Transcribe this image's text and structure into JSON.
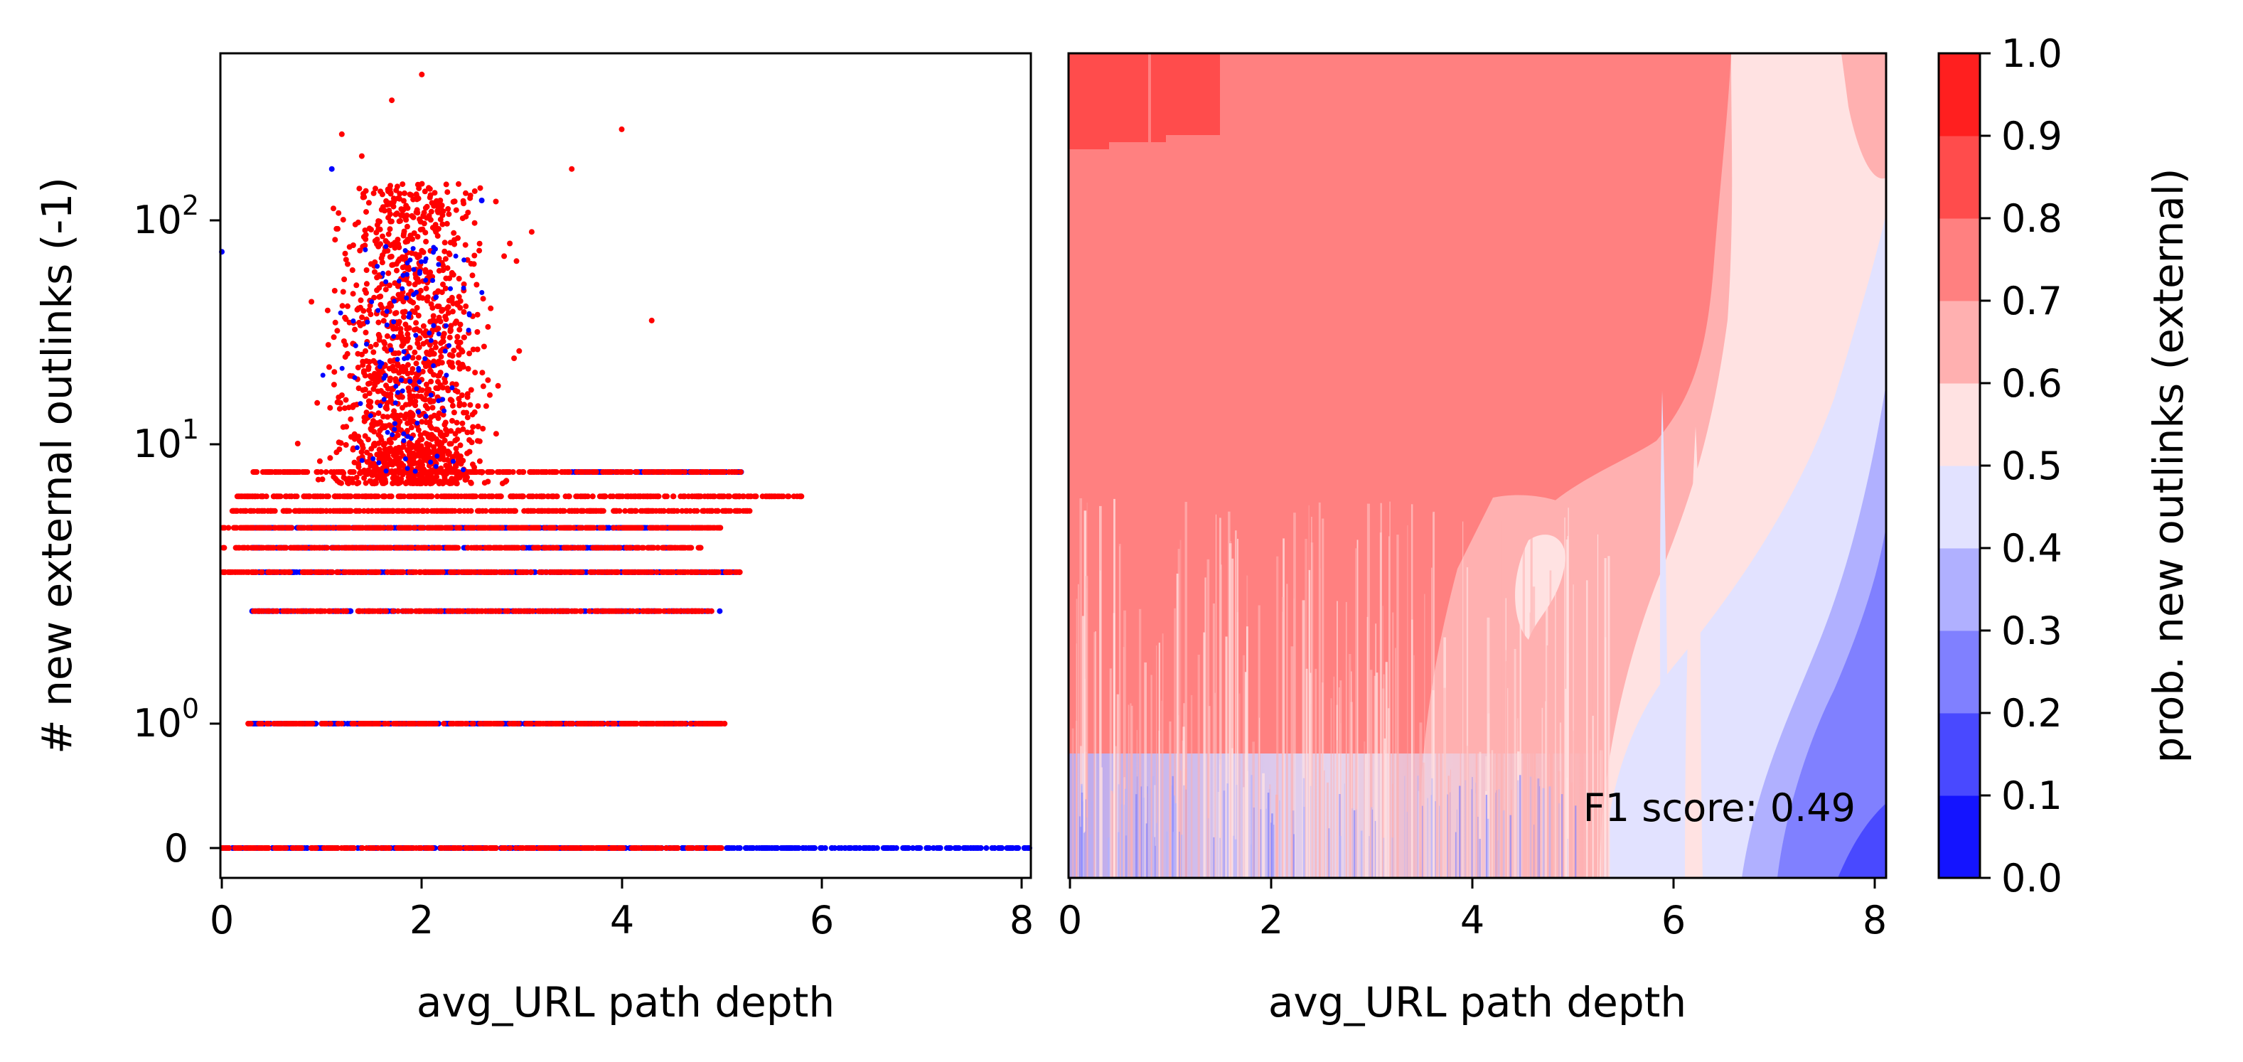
{
  "colors": {
    "class_external": "#ff0000",
    "class_none": "#0000ff",
    "colormap": [
      "#1414ff",
      "#4949ff",
      "#8080ff",
      "#b0b0ff",
      "#e2e2ff",
      "#ffe2e2",
      "#ffb0b0",
      "#ff8080",
      "#ff4c4c",
      "#ff1f1f"
    ]
  },
  "chart_data": [
    {
      "type": "scatter",
      "xlabel": "avg_URL path depth",
      "ylabel": "# new external outlinks (-1)",
      "xlim": [
        0,
        8.1
      ],
      "yscale": "symlog",
      "xticks": [
        "0",
        "2",
        "4",
        "6",
        "8"
      ],
      "yticks": [
        "0",
        "10^0",
        "10^1",
        "10^2"
      ],
      "series": [
        {
          "color": "#ff0000",
          "bands": [
            {
              "y": 0,
              "x_range": [
                0,
                5.0
              ]
            },
            {
              "y": 1,
              "x_range": [
                0.25,
                5.05
              ]
            },
            {
              "y": 2.8,
              "x_range": [
                0.3,
                4.9
              ]
            },
            {
              "y": 4.0,
              "x_range": [
                0,
                5.2
              ]
            },
            {
              "y": 5.0,
              "x_range": [
                0,
                4.8
              ]
            },
            {
              "y": 6.0,
              "x_range": [
                0,
                5.0
              ]
            },
            {
              "y": 7.0,
              "x_range": [
                0.1,
                5.3
              ]
            },
            {
              "y": 8.0,
              "x_range": [
                0.15,
                5.8
              ]
            },
            {
              "y": 10.0,
              "x_range": [
                0.3,
                5.2
              ]
            }
          ],
          "cluster": {
            "x_center": 1.9,
            "x_spread": 1.3,
            "y_range": [
              9,
              140
            ]
          },
          "outliers": [
            [
              2.0,
              380
            ],
            [
              1.7,
              300
            ],
            [
              4.0,
              230
            ],
            [
              1.2,
              220
            ],
            [
              3.5,
              160
            ],
            [
              1.4,
              180
            ],
            [
              3.1,
              90
            ],
            [
              4.3,
              40
            ]
          ]
        },
        {
          "color": "#0000ff",
          "bands": [
            {
              "y": 0,
              "x_range": [
                0,
                8.1
              ]
            },
            {
              "y": 1,
              "x_range": [
                0.3,
                5.0
              ]
            },
            {
              "y": 2.8,
              "x_range": [
                0.3,
                5.0
              ]
            },
            {
              "y": 4.0,
              "x_range": [
                0.3,
                5.2
              ]
            },
            {
              "y": 5.0,
              "x_range": [
                0.3,
                4.5
              ]
            },
            {
              "y": 6.0,
              "x_range": [
                0.3,
                4.8
              ]
            },
            {
              "y": 10.0,
              "x_range": [
                3.5,
                5.2
              ]
            }
          ],
          "outliers": [
            [
              0,
              75
            ],
            [
              1.1,
              160
            ],
            [
              2.6,
              120
            ],
            [
              1.6,
              60
            ]
          ]
        }
      ]
    },
    {
      "type": "heatmap",
      "xlabel": "avg_URL path depth",
      "xlim": [
        0,
        8.1
      ],
      "xticks": [
        "0",
        "2",
        "4",
        "6",
        "8"
      ],
      "annotation": "F1 score: 0.49",
      "colorbar": {
        "label": "prob. new outlinks (external)",
        "range": [
          0,
          1
        ],
        "ticks": [
          "0.0",
          "0.1",
          "0.2",
          "0.3",
          "0.4",
          "0.5",
          "0.6",
          "0.7",
          "0.8",
          "0.9",
          "1.0"
        ]
      },
      "regions": [
        {
          "level": 0.75,
          "description_x": [
            0,
            6.6
          ],
          "y": "upper"
        },
        {
          "level": 0.85,
          "x_range": [
            0,
            1.5
          ],
          "y": "top"
        },
        {
          "level": 0.55,
          "x_range": [
            6.6,
            7.6
          ],
          "y": "top"
        },
        {
          "level": 0.65,
          "x_range": [
            7.6,
            8.1
          ],
          "y": "top"
        },
        {
          "level": 0.65,
          "x_range": [
            4.0,
            6.8
          ],
          "y": "middle"
        },
        {
          "level": 0.45,
          "x_range": [
            5.3,
            8.1
          ],
          "y": "lower"
        },
        {
          "level": 0.35,
          "x_range": [
            6.4,
            8.1
          ],
          "y": "lower"
        },
        {
          "level": 0.25,
          "x_range": [
            7.0,
            8.1
          ],
          "y": "bottom"
        },
        {
          "level": 0.15,
          "x_range": [
            7.8,
            8.1
          ],
          "y": "bottom"
        }
      ]
    }
  ]
}
